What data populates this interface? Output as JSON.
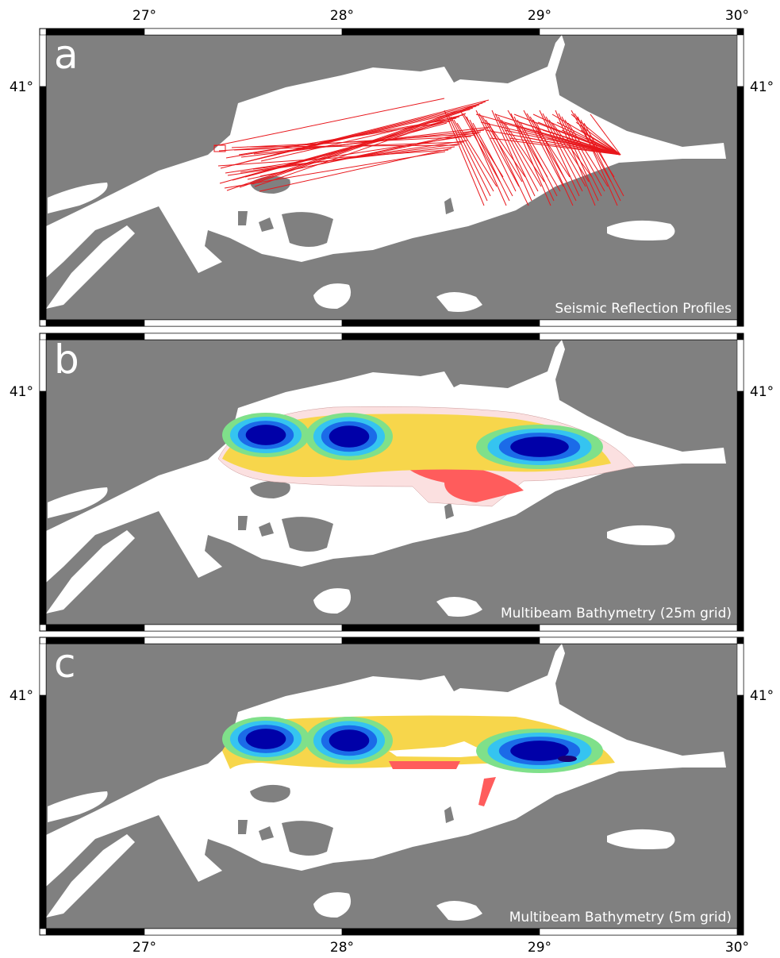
{
  "axes": {
    "lon_labels": [
      "27°",
      "28°",
      "29°",
      "30°"
    ],
    "lat_label": "41°"
  },
  "panels": [
    {
      "letter": "a",
      "caption": "Seismic Reflection Profiles"
    },
    {
      "letter": "b",
      "caption": "Multibeam Bathymetry (25m grid)"
    },
    {
      "letter": "c",
      "caption": "Multibeam Bathymetry (5m grid)"
    }
  ]
}
